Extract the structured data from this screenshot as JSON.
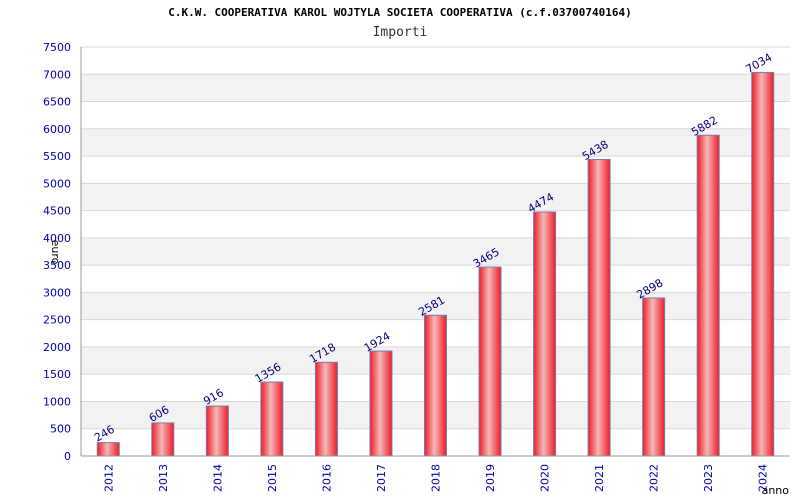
{
  "header": {
    "title": "C.K.W. COOPERATIVA KAROL WOJTYLA SOCIETA COOPERATIVA (c.f.03700740164)",
    "subtitle": "Importi"
  },
  "colors": {
    "bar": "#ee1c24",
    "bar_highlight": "#f4b8b8",
    "bar_outline": "#7a7ab0",
    "band": "#f2f2f2",
    "grid": "#d8d8d8",
    "tick_text": "#0000aa",
    "label_text": "#000080"
  },
  "chart_data": {
    "type": "bar",
    "title": "C.K.W. COOPERATIVA KAROL WOJTYLA SOCIETA COOPERATIVA (c.f.03700740164)",
    "subtitle": "Importi",
    "xlabel": "anno",
    "ylabel": "euro",
    "ylim": [
      0,
      7500
    ],
    "ytick_step": 500,
    "grid": true,
    "legend": "none",
    "categories": [
      "2012",
      "2013",
      "2014",
      "2015",
      "2016",
      "2017",
      "2018",
      "2019",
      "2020",
      "2021",
      "2022",
      "2023",
      "2024"
    ],
    "values": [
      246,
      606,
      916,
      1356,
      1718,
      1924,
      2581,
      3465,
      4474,
      5438,
      2898,
      5882,
      7034
    ]
  }
}
